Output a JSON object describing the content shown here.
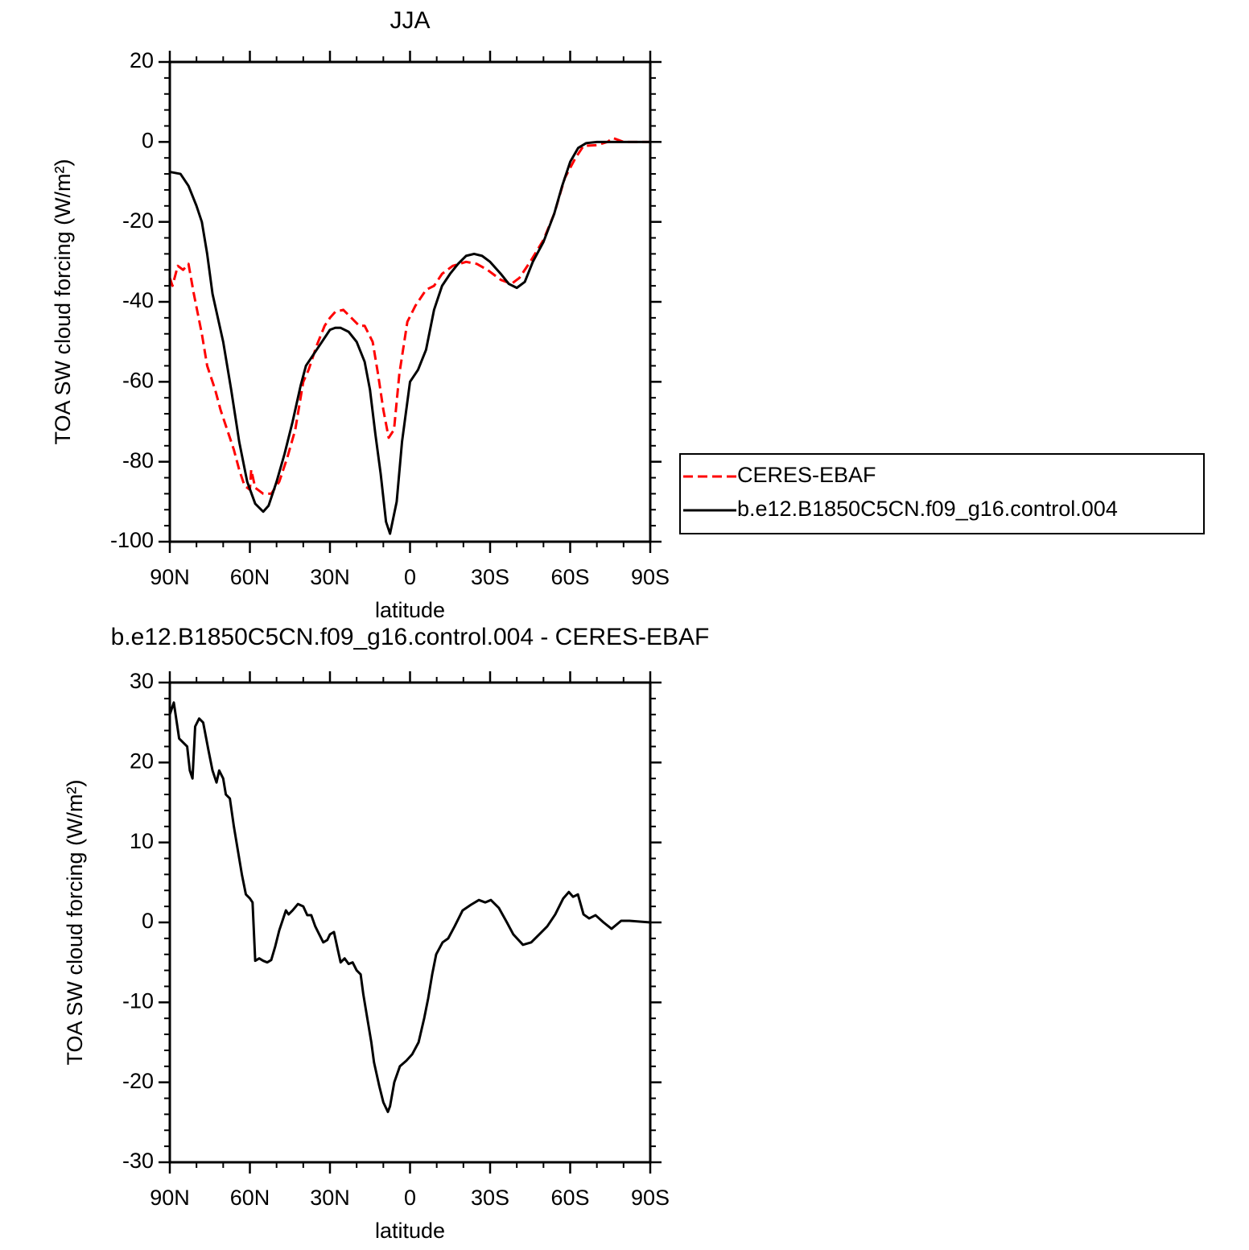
{
  "chart_data": [
    {
      "type": "line",
      "title": "JJA",
      "xlabel": "latitude",
      "ylabel": "TOA SW cloud forcing (W/m²)",
      "xlim": [
        90,
        -90
      ],
      "ylim": [
        -100,
        20
      ],
      "xticks": [
        {
          "value": 90,
          "label": "90N"
        },
        {
          "value": 60,
          "label": "60N"
        },
        {
          "value": 30,
          "label": "30N"
        },
        0,
        {
          "value": -30,
          "label": "30S"
        },
        {
          "value": -60,
          "label": "60S"
        },
        {
          "value": -90,
          "label": "90S"
        }
      ],
      "yticks": [
        -100,
        -80,
        -60,
        -40,
        -20,
        0,
        20
      ],
      "legend": "right",
      "series": [
        {
          "name": "CERES-EBAF",
          "color": "#ff0000",
          "dash": true,
          "x": [
            90,
            89,
            87,
            85,
            83,
            81,
            78,
            76,
            73,
            71,
            69,
            66,
            64,
            62,
            60,
            59.5,
            58,
            55,
            52,
            49,
            46,
            43,
            40,
            38,
            35,
            32,
            30,
            28,
            25,
            22,
            19,
            17,
            14,
            12,
            10,
            8,
            6,
            4,
            1,
            -2,
            -6,
            -9,
            -12,
            -16,
            -21,
            -25,
            -29,
            -34,
            -38,
            -41,
            -45,
            -50,
            -54,
            -58,
            -62,
            -65,
            -70,
            -74,
            -76,
            -80,
            -90
          ],
          "values": [
            -34,
            -36,
            -31,
            -32,
            -30.5,
            -38,
            -48,
            -56,
            -62,
            -67,
            -71,
            -77,
            -82,
            -86,
            -87,
            -82,
            -86.5,
            -88,
            -88,
            -85,
            -79,
            -72,
            -60,
            -57,
            -51,
            -46,
            -44,
            -42.5,
            -42,
            -44,
            -46,
            -46,
            -50,
            -58,
            -67,
            -74,
            -72,
            -58,
            -45,
            -41,
            -37,
            -36,
            -33,
            -31,
            -30,
            -30.5,
            -32,
            -34.5,
            -35.5,
            -34,
            -30,
            -24.5,
            -18,
            -9,
            -4,
            -1,
            -0.8,
            0,
            1,
            0,
            0
          ]
        },
        {
          "name": "b.e12.B1850C5CN.f09_g16.control.004",
          "color": "#000000",
          "dash": false,
          "x": [
            90,
            86,
            83,
            80,
            78,
            76,
            74,
            70,
            67,
            64,
            61,
            58,
            55,
            53,
            50,
            47,
            44,
            41,
            39,
            36,
            33,
            30,
            28,
            26,
            23,
            20,
            17,
            15,
            13,
            11,
            9,
            7.5,
            5,
            3,
            0,
            -3,
            -6,
            -9,
            -12,
            -15,
            -18,
            -21,
            -24,
            -27,
            -30,
            -34,
            -37,
            -40,
            -43,
            -46,
            -50,
            -54,
            -57,
            -60,
            -63,
            -66,
            -70,
            -80,
            -90
          ],
          "values": [
            -7.5,
            -8,
            -11,
            -16,
            -20,
            -28,
            -38,
            -50,
            -62,
            -75,
            -85,
            -90.5,
            -92.5,
            -91,
            -85,
            -78,
            -70,
            -61,
            -56,
            -53,
            -50,
            -47,
            -46.5,
            -46.5,
            -47.5,
            -50,
            -55,
            -62,
            -73,
            -83,
            -95,
            -98,
            -90,
            -75,
            -60,
            -57,
            -52,
            -42,
            -36,
            -33,
            -30.5,
            -28.5,
            -28,
            -28.5,
            -30,
            -33,
            -35.5,
            -36.5,
            -35,
            -30,
            -25,
            -18,
            -11,
            -5,
            -1.5,
            -0.3,
            0,
            0,
            0
          ]
        }
      ]
    },
    {
      "type": "line",
      "title": "b.e12.B1850C5CN.f09_g16.control.004 - CERES-EBAF",
      "xlabel": "latitude",
      "ylabel": "TOA SW cloud forcing (W/m²)",
      "xlim": [
        90,
        -90
      ],
      "ylim": [
        -30,
        30
      ],
      "xticks": [
        {
          "value": 90,
          "label": "90N"
        },
        {
          "value": 60,
          "label": "60N"
        },
        {
          "value": 30,
          "label": "30N"
        },
        0,
        {
          "value": -30,
          "label": "30S"
        },
        {
          "value": -60,
          "label": "60S"
        },
        {
          "value": -90,
          "label": "90S"
        }
      ],
      "yticks": [
        -30,
        -20,
        -10,
        0,
        10,
        20,
        30
      ],
      "series": [
        {
          "name": "b.e12.B1850C5CN.f09_g16.control.004 - CERES-EBAF",
          "color": "#000000",
          "dash": false,
          "x": [
            90,
            88.5,
            86.5,
            83.5,
            82.5,
            81.5,
            80.5,
            79,
            77.5,
            75.5,
            74,
            72.5,
            71.5,
            70,
            69,
            67.5,
            66,
            64.5,
            63,
            61.5,
            60,
            59,
            58,
            56.5,
            55,
            53.5,
            52,
            50.5,
            49,
            47.5,
            46.5,
            45.5,
            44,
            42,
            40,
            38.5,
            37,
            35.5,
            34,
            32.5,
            31,
            30,
            28.5,
            27,
            26,
            24.5,
            23,
            21.5,
            20,
            18.5,
            17.5,
            16,
            14.5,
            13.5,
            11.5,
            10,
            8.3,
            7.5,
            5.9,
            3.8,
            1.4,
            -0.8,
            -3.2,
            -5.3,
            -6.8,
            -8.3,
            -9.8,
            -12.2,
            -14.3,
            -16.7,
            -19.7,
            -22.8,
            -25.8,
            -28.2,
            -30.3,
            -33.3,
            -36.3,
            -38.7,
            -42.3,
            -45.4,
            -48.4,
            -51.4,
            -54.4,
            -57.4,
            -59.5,
            -61.1,
            -62.9,
            -65,
            -67.1,
            -69.5,
            -72.5,
            -75.5,
            -79.1,
            -82.2,
            -90
          ],
          "values": [
            26,
            27.5,
            23,
            22,
            19,
            18,
            24.5,
            25.5,
            25,
            21.5,
            19,
            17.5,
            19,
            18,
            16,
            15.5,
            12,
            9,
            6,
            3.5,
            3,
            2.5,
            -4.8,
            -4.5,
            -4.8,
            -5,
            -4.7,
            -3,
            -1,
            0.5,
            1.5,
            1,
            1.5,
            2.3,
            2,
            0.9,
            0.9,
            -0.5,
            -1.5,
            -2.5,
            -2.2,
            -1.5,
            -1.2,
            -3.5,
            -5,
            -4.5,
            -5.2,
            -5,
            -6,
            -6.5,
            -9,
            -12,
            -15,
            -17.5,
            -20.5,
            -22.5,
            -23.7,
            -23,
            -20,
            -18,
            -17.3,
            -16.5,
            -15,
            -12,
            -9.5,
            -6.5,
            -4,
            -2.5,
            -2,
            -0.5,
            1.5,
            2.2,
            2.8,
            2.5,
            2.8,
            1.8,
            0,
            -1.5,
            -2.8,
            -2.5,
            -1.5,
            -0.5,
            1,
            3,
            3.8,
            3.2,
            3.5,
            1,
            0.5,
            0.9,
            0,
            -0.8,
            0.2,
            0.2,
            0
          ]
        }
      ]
    }
  ]
}
